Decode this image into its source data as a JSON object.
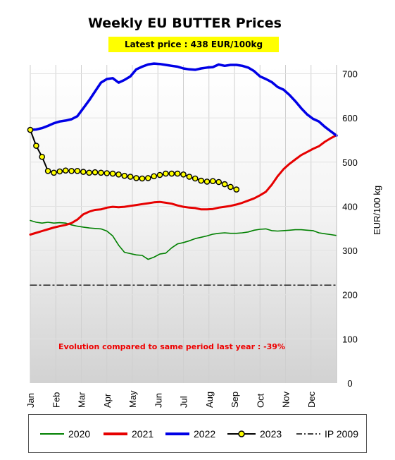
{
  "chart_data": {
    "type": "line",
    "title": "Weekly EU BUTTER Prices",
    "subtitle": "Latest price : 438 EUR/100kg",
    "ylabel": "EUR/100 kg",
    "ylim": [
      0,
      720
    ],
    "yticks": [
      0,
      100,
      200,
      300,
      400,
      500,
      600,
      700
    ],
    "x_ticks": [
      "Jan",
      "Feb",
      "Mar",
      "Apr",
      "May",
      "Jun",
      "Jul",
      "Aug",
      "Sep",
      "Oct",
      "Nov",
      "Dec"
    ],
    "grid": "vertical",
    "legend_position": "bottom",
    "annotation": "Evolution compared to same period last year : -39%",
    "series": [
      {
        "name": "2020",
        "color": "#008000",
        "points": [
          [
            0,
            368
          ],
          [
            1,
            364
          ],
          [
            2,
            362
          ],
          [
            3,
            364
          ],
          [
            4,
            362
          ],
          [
            5,
            363
          ],
          [
            6,
            362
          ],
          [
            7,
            358
          ],
          [
            8,
            355
          ],
          [
            9,
            353
          ],
          [
            10,
            351
          ],
          [
            11,
            350
          ],
          [
            12,
            349
          ],
          [
            13,
            344
          ],
          [
            14,
            333
          ],
          [
            15,
            312
          ],
          [
            16,
            296
          ],
          [
            17,
            293
          ],
          [
            18,
            290
          ],
          [
            19,
            289
          ],
          [
            20,
            280
          ],
          [
            21,
            285
          ],
          [
            22,
            292
          ],
          [
            23,
            294
          ],
          [
            24,
            306
          ],
          [
            25,
            315
          ],
          [
            26,
            318
          ],
          [
            27,
            322
          ],
          [
            28,
            327
          ],
          [
            29,
            330
          ],
          [
            30,
            333
          ],
          [
            31,
            337
          ],
          [
            32,
            339
          ],
          [
            33,
            340
          ],
          [
            34,
            339
          ],
          [
            35,
            339
          ],
          [
            36,
            340
          ],
          [
            37,
            342
          ],
          [
            38,
            346
          ],
          [
            39,
            348
          ],
          [
            40,
            349
          ],
          [
            41,
            345
          ],
          [
            42,
            344
          ],
          [
            43,
            345
          ],
          [
            44,
            346
          ],
          [
            45,
            347
          ],
          [
            46,
            347
          ],
          [
            47,
            346
          ],
          [
            48,
            345
          ],
          [
            49,
            340
          ],
          [
            50,
            338
          ],
          [
            51,
            336
          ],
          [
            52,
            334
          ]
        ]
      },
      {
        "name": "2021",
        "color": "#e60000",
        "points": [
          [
            0,
            336
          ],
          [
            1,
            340
          ],
          [
            2,
            344
          ],
          [
            3,
            348
          ],
          [
            4,
            352
          ],
          [
            5,
            355
          ],
          [
            6,
            358
          ],
          [
            7,
            362
          ],
          [
            8,
            370
          ],
          [
            9,
            382
          ],
          [
            10,
            388
          ],
          [
            11,
            392
          ],
          [
            12,
            393
          ],
          [
            13,
            397
          ],
          [
            14,
            399
          ],
          [
            15,
            398
          ],
          [
            16,
            399
          ],
          [
            17,
            401
          ],
          [
            18,
            403
          ],
          [
            19,
            405
          ],
          [
            20,
            407
          ],
          [
            21,
            409
          ],
          [
            22,
            410
          ],
          [
            23,
            408
          ],
          [
            24,
            406
          ],
          [
            25,
            402
          ],
          [
            26,
            399
          ],
          [
            27,
            397
          ],
          [
            28,
            396
          ],
          [
            29,
            393
          ],
          [
            30,
            393
          ],
          [
            31,
            394
          ],
          [
            32,
            397
          ],
          [
            33,
            399
          ],
          [
            34,
            401
          ],
          [
            35,
            404
          ],
          [
            36,
            408
          ],
          [
            37,
            413
          ],
          [
            38,
            418
          ],
          [
            39,
            425
          ],
          [
            40,
            433
          ],
          [
            41,
            449
          ],
          [
            42,
            468
          ],
          [
            43,
            484
          ],
          [
            44,
            496
          ],
          [
            45,
            506
          ],
          [
            46,
            516
          ],
          [
            47,
            523
          ],
          [
            48,
            530
          ],
          [
            49,
            536
          ],
          [
            50,
            546
          ],
          [
            51,
            554
          ],
          [
            52,
            561
          ]
        ]
      },
      {
        "name": "2022",
        "color": "#0000e6",
        "points": [
          [
            0,
            573
          ],
          [
            1,
            574
          ],
          [
            2,
            577
          ],
          [
            3,
            582
          ],
          [
            4,
            588
          ],
          [
            5,
            592
          ],
          [
            6,
            594
          ],
          [
            7,
            597
          ],
          [
            8,
            604
          ],
          [
            9,
            622
          ],
          [
            10,
            640
          ],
          [
            11,
            660
          ],
          [
            12,
            680
          ],
          [
            13,
            688
          ],
          [
            14,
            690
          ],
          [
            15,
            680
          ],
          [
            16,
            686
          ],
          [
            17,
            694
          ],
          [
            18,
            710
          ],
          [
            19,
            716
          ],
          [
            20,
            721
          ],
          [
            21,
            723
          ],
          [
            22,
            722
          ],
          [
            23,
            720
          ],
          [
            24,
            718
          ],
          [
            25,
            716
          ],
          [
            26,
            712
          ],
          [
            27,
            710
          ],
          [
            28,
            709
          ],
          [
            29,
            712
          ],
          [
            30,
            714
          ],
          [
            31,
            715
          ],
          [
            32,
            721
          ],
          [
            33,
            718
          ],
          [
            34,
            720
          ],
          [
            35,
            720
          ],
          [
            36,
            718
          ],
          [
            37,
            714
          ],
          [
            38,
            706
          ],
          [
            39,
            694
          ],
          [
            40,
            688
          ],
          [
            41,
            681
          ],
          [
            42,
            670
          ],
          [
            43,
            664
          ],
          [
            44,
            652
          ],
          [
            45,
            638
          ],
          [
            46,
            622
          ],
          [
            47,
            608
          ],
          [
            48,
            598
          ],
          [
            49,
            592
          ],
          [
            50,
            580
          ],
          [
            51,
            570
          ],
          [
            52,
            560
          ]
        ]
      },
      {
        "name": "2023",
        "color": "#000000",
        "marker": "#ffff00",
        "points": [
          [
            0,
            573
          ],
          [
            1,
            537
          ],
          [
            2,
            512
          ],
          [
            3,
            480
          ],
          [
            4,
            476
          ],
          [
            5,
            479
          ],
          [
            6,
            481
          ],
          [
            7,
            480
          ],
          [
            8,
            480
          ],
          [
            9,
            478
          ],
          [
            10,
            476
          ],
          [
            11,
            477
          ],
          [
            12,
            476
          ],
          [
            13,
            475
          ],
          [
            14,
            474
          ],
          [
            15,
            472
          ],
          [
            16,
            469
          ],
          [
            17,
            467
          ],
          [
            18,
            464
          ],
          [
            19,
            463
          ],
          [
            20,
            464
          ],
          [
            21,
            468
          ],
          [
            22,
            471
          ],
          [
            23,
            474
          ],
          [
            24,
            474
          ],
          [
            25,
            474
          ],
          [
            26,
            472
          ],
          [
            27,
            467
          ],
          [
            28,
            463
          ],
          [
            29,
            458
          ],
          [
            30,
            456
          ],
          [
            31,
            457
          ],
          [
            32,
            455
          ],
          [
            33,
            450
          ],
          [
            34,
            444
          ],
          [
            35,
            438
          ]
        ]
      },
      {
        "name": "IP 2009",
        "color": "#000000",
        "style": "dash-dot",
        "points": [
          [
            0,
            221.75
          ],
          [
            52,
            221.75
          ]
        ]
      }
    ]
  },
  "legend": {
    "items": [
      {
        "label": "2020"
      },
      {
        "label": "2021"
      },
      {
        "label": "2022"
      },
      {
        "label": "2023"
      },
      {
        "label": "IP 2009"
      }
    ]
  }
}
